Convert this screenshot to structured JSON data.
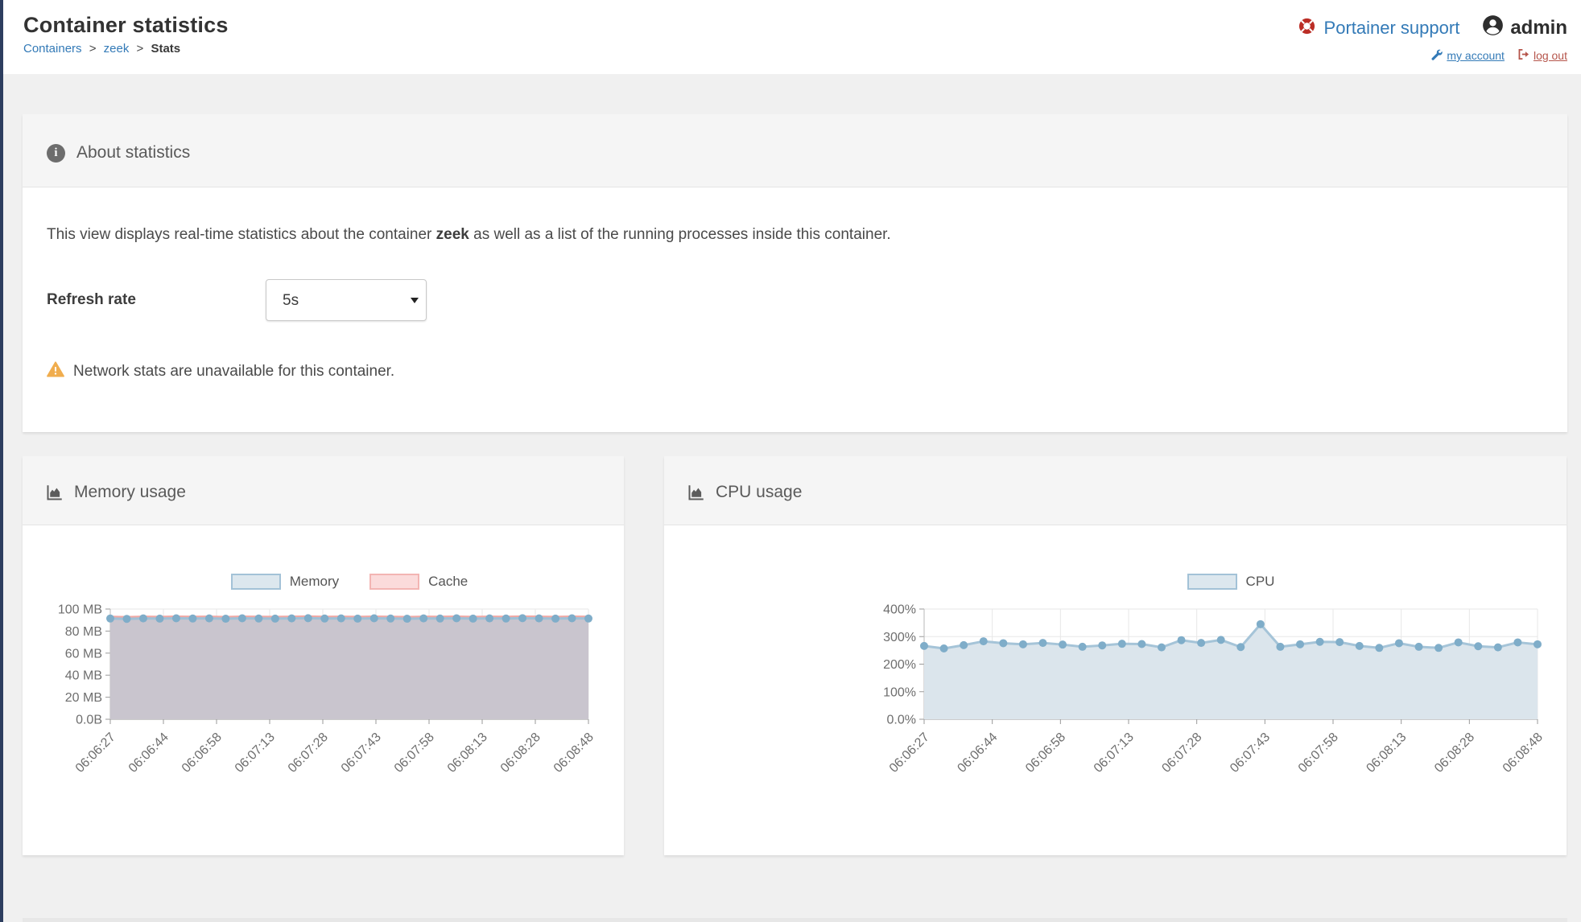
{
  "header": {
    "title": "Container statistics",
    "breadcrumb": {
      "containers": "Containers",
      "zeek": "zeek",
      "current": "Stats",
      "sep": ">"
    },
    "support_link": "Portainer support",
    "username": "admin",
    "my_account": "my account",
    "log_out": "log out"
  },
  "about": {
    "title": "About statistics",
    "description_prefix": "This view displays real-time statistics about the container ",
    "container_name": "zeek",
    "description_suffix": " as well as a list of the running processes inside this container.",
    "refresh_label": "Refresh rate",
    "refresh_value": "5s",
    "warning": "Network stats are unavailable for this container."
  },
  "colors": {
    "accent_link": "#337ab7",
    "logout_red": "#b5544a",
    "support_ring_red": "#bb2d25",
    "warning_orange": "#f0ad4e",
    "sidebar_navy": "#2d3e5f",
    "chart_blue_dot": "#7fadc9",
    "chart_blue_line": "#9fc0d6",
    "chart_blue_fill": "#dbe5ec",
    "chart_pink_line": "#f0a8a4",
    "memory_overlap_fill": "#c9c5ce"
  },
  "chart_data": [
    {
      "id": "memory",
      "type": "line",
      "title": "Memory usage",
      "y_max": 100,
      "y_unit": "MB",
      "y_ticks": [
        "100 MB",
        "80 MB",
        "60 MB",
        "40 MB",
        "20 MB",
        "0.0B"
      ],
      "x_labels": [
        "06:06:27",
        "06:06:44",
        "06:06:58",
        "06:07:13",
        "06:07:28",
        "06:07:43",
        "06:07:58",
        "06:08:13",
        "06:08:28",
        "06:08:48"
      ],
      "legend": [
        {
          "label": "Memory",
          "fill": "#dce7ee",
          "border": "#a3c2d7"
        },
        {
          "label": "Cache",
          "fill": "#fbdbdb",
          "border": "#f3b5b3"
        }
      ],
      "series": [
        {
          "name": "Cache",
          "dots": false,
          "line_color": "#f0a8a4",
          "values": [
            92.9,
            92.6,
            93.0,
            92.8,
            93.1,
            92.9,
            93.0,
            92.7,
            93.1,
            92.9,
            92.8,
            93.0,
            93.2,
            92.9,
            93.0,
            92.8,
            93.1,
            92.9,
            92.7,
            93.0,
            92.9,
            93.1,
            92.8,
            93.0,
            92.9,
            93.2,
            93.0,
            92.8,
            93.1,
            92.9
          ]
        },
        {
          "name": "Memory",
          "dots": true,
          "line_color": "#9fc0d6",
          "dot_color": "#7fadc9",
          "fill": "#c9c5ce",
          "values": [
            91.4,
            91.1,
            91.5,
            91.3,
            91.6,
            91.4,
            91.5,
            91.2,
            91.6,
            91.4,
            91.3,
            91.5,
            91.7,
            91.4,
            91.5,
            91.3,
            91.6,
            91.4,
            91.2,
            91.5,
            91.4,
            91.6,
            91.3,
            91.5,
            91.4,
            91.7,
            91.5,
            91.3,
            91.6,
            91.4
          ]
        }
      ]
    },
    {
      "id": "cpu",
      "type": "line",
      "title": "CPU usage",
      "y_max": 400,
      "y_unit": "%",
      "y_ticks": [
        "400%",
        "300%",
        "200%",
        "100%",
        "0.0%"
      ],
      "x_labels": [
        "06:06:27",
        "06:06:44",
        "06:06:58",
        "06:07:13",
        "06:07:28",
        "06:07:43",
        "06:07:58",
        "06:08:13",
        "06:08:28",
        "06:08:48"
      ],
      "legend": [
        {
          "label": "CPU",
          "fill": "#dce7ee",
          "border": "#a3c2d7"
        }
      ],
      "series": [
        {
          "name": "CPU",
          "dots": true,
          "line_color": "#a5c4d8",
          "dot_color": "#7fadc9",
          "fill": "#dbe5ec",
          "values": [
            266,
            257,
            269,
            283,
            276,
            272,
            277,
            271,
            263,
            268,
            274,
            273,
            261,
            287,
            277,
            288,
            262,
            345,
            263,
            272,
            281,
            280,
            266,
            259,
            276,
            263,
            259,
            279,
            265,
            261,
            279,
            272
          ]
        }
      ]
    }
  ]
}
